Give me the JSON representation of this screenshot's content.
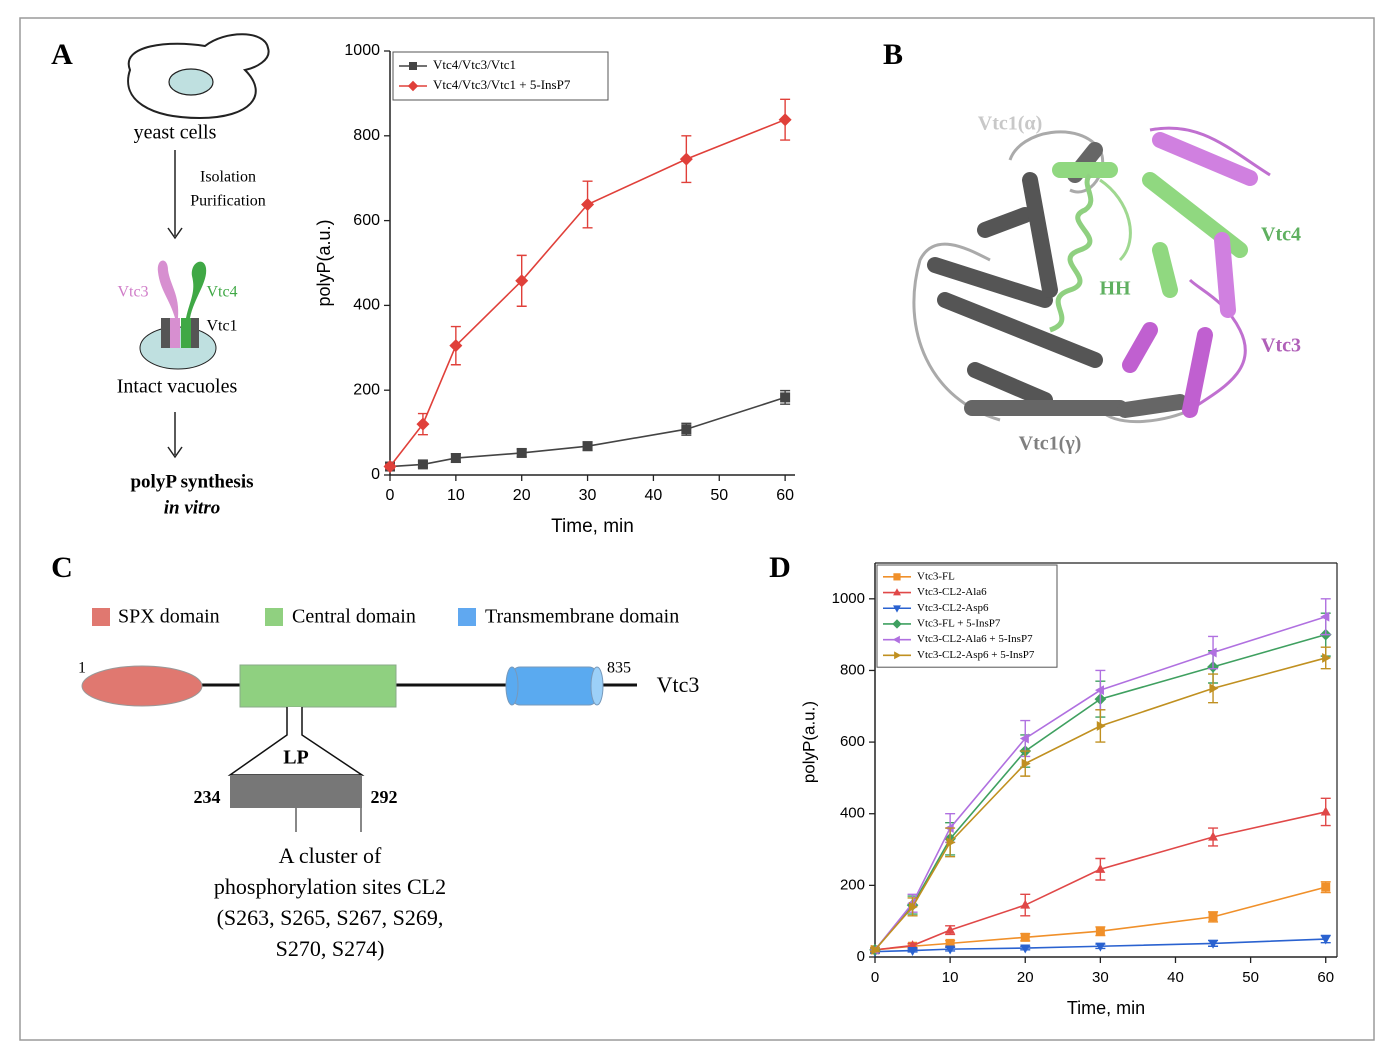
{
  "panels": {
    "a": "A",
    "b": "B",
    "c": "C",
    "d": "D"
  },
  "workflow": {
    "cells": "yeast cells",
    "step": [
      "Isolation",
      "Purification"
    ],
    "vtc3": "Vtc3",
    "vtc4": "Vtc4",
    "vtc1": "Vtc1",
    "vacuoles": "Intact vacuoles",
    "result": "polyP synthesis",
    "result_sub": "in vitro"
  },
  "structure": {
    "labels": [
      "Vtc1(α)",
      "Vtc4",
      "HH",
      "Vtc3",
      "Vtc1(γ)"
    ]
  },
  "domains": {
    "legend": [
      "SPX domain",
      "Central domain",
      "Transmembrane domain"
    ],
    "start": "1",
    "end": "835",
    "protein": "Vtc3",
    "loop": "LP",
    "loop_start": "234",
    "loop_end": "292",
    "note": [
      "A cluster of",
      "phosphorylation sites CL2",
      "(S263, S265, S267, S269,",
      "S270, S274)"
    ]
  },
  "chart_data": [
    {
      "type": "line",
      "x_label": "Time, min",
      "y_label": "polyP(a.u.)",
      "x": [
        0,
        5,
        10,
        20,
        30,
        45,
        60
      ],
      "xlim": [
        0,
        61.5
      ],
      "xticks": [
        0,
        10,
        20,
        30,
        40,
        50,
        60
      ],
      "ylim": [
        0,
        1000
      ],
      "yticks": [
        0,
        200,
        400,
        600,
        800,
        1000
      ],
      "legend": "upper left",
      "series": [
        {
          "name": "Vtc4/Vtc3/Vtc1",
          "color": "#444444",
          "marker": "square",
          "values": [
            20,
            25,
            40,
            52,
            68,
            108,
            183
          ],
          "errors": [
            5,
            7,
            10,
            9,
            10,
            14,
            16
          ]
        },
        {
          "name": "Vtc4/Vtc3/Vtc1 + 5-InsP7",
          "color": "#e0403a",
          "marker": "diamond",
          "values": [
            20,
            120,
            305,
            458,
            638,
            745,
            838
          ],
          "errors": [
            5,
            25,
            45,
            60,
            55,
            55,
            48
          ]
        }
      ]
    },
    {
      "type": "line",
      "x_label": "Time, min",
      "y_label": "polyP(a.u.)",
      "x": [
        0,
        5,
        10,
        20,
        30,
        45,
        60
      ],
      "xlim": [
        0,
        61.5
      ],
      "xticks": [
        0,
        10,
        20,
        30,
        40,
        50,
        60
      ],
      "ylim": [
        0,
        1100
      ],
      "yticks": [
        0,
        200,
        400,
        600,
        800,
        1000
      ],
      "legend": "upper left",
      "series": [
        {
          "name": "Vtc3-FL",
          "color": "#f0902a",
          "marker": "square",
          "values": [
            20,
            30,
            38,
            55,
            72,
            112,
            195
          ],
          "errors": [
            5,
            6,
            8,
            10,
            12,
            14,
            15
          ]
        },
        {
          "name": "Vtc3-CL2-Ala6",
          "color": "#e04848",
          "marker": "triangle-up",
          "values": [
            20,
            32,
            75,
            145,
            245,
            335,
            405
          ],
          "errors": [
            5,
            6,
            12,
            30,
            30,
            25,
            38
          ]
        },
        {
          "name": "Vtc3-CL2-Asp6",
          "color": "#2a62d0",
          "marker": "triangle-down",
          "values": [
            15,
            18,
            22,
            25,
            30,
            38,
            50
          ],
          "errors": [
            4,
            4,
            5,
            5,
            6,
            8,
            10
          ]
        },
        {
          "name": "Vtc3-FL + 5-InsP7",
          "color": "#3fa060",
          "marker": "diamond",
          "values": [
            20,
            145,
            330,
            575,
            720,
            810,
            900
          ],
          "errors": [
            5,
            25,
            45,
            45,
            50,
            45,
            60
          ]
        },
        {
          "name": "Vtc3-CL2-Ala6 + 5-InsP7",
          "color": "#b070e0",
          "marker": "triangle-left",
          "values": [
            20,
            150,
            360,
            610,
            745,
            850,
            950
          ],
          "errors": [
            5,
            25,
            40,
            50,
            55,
            45,
            50
          ]
        },
        {
          "name": "Vtc3-CL2-Asp6 + 5-InsP7",
          "color": "#c09020",
          "marker": "triangle-right",
          "values": [
            20,
            140,
            320,
            540,
            645,
            750,
            835
          ],
          "errors": [
            5,
            25,
            40,
            35,
            45,
            40,
            30
          ]
        }
      ]
    }
  ]
}
